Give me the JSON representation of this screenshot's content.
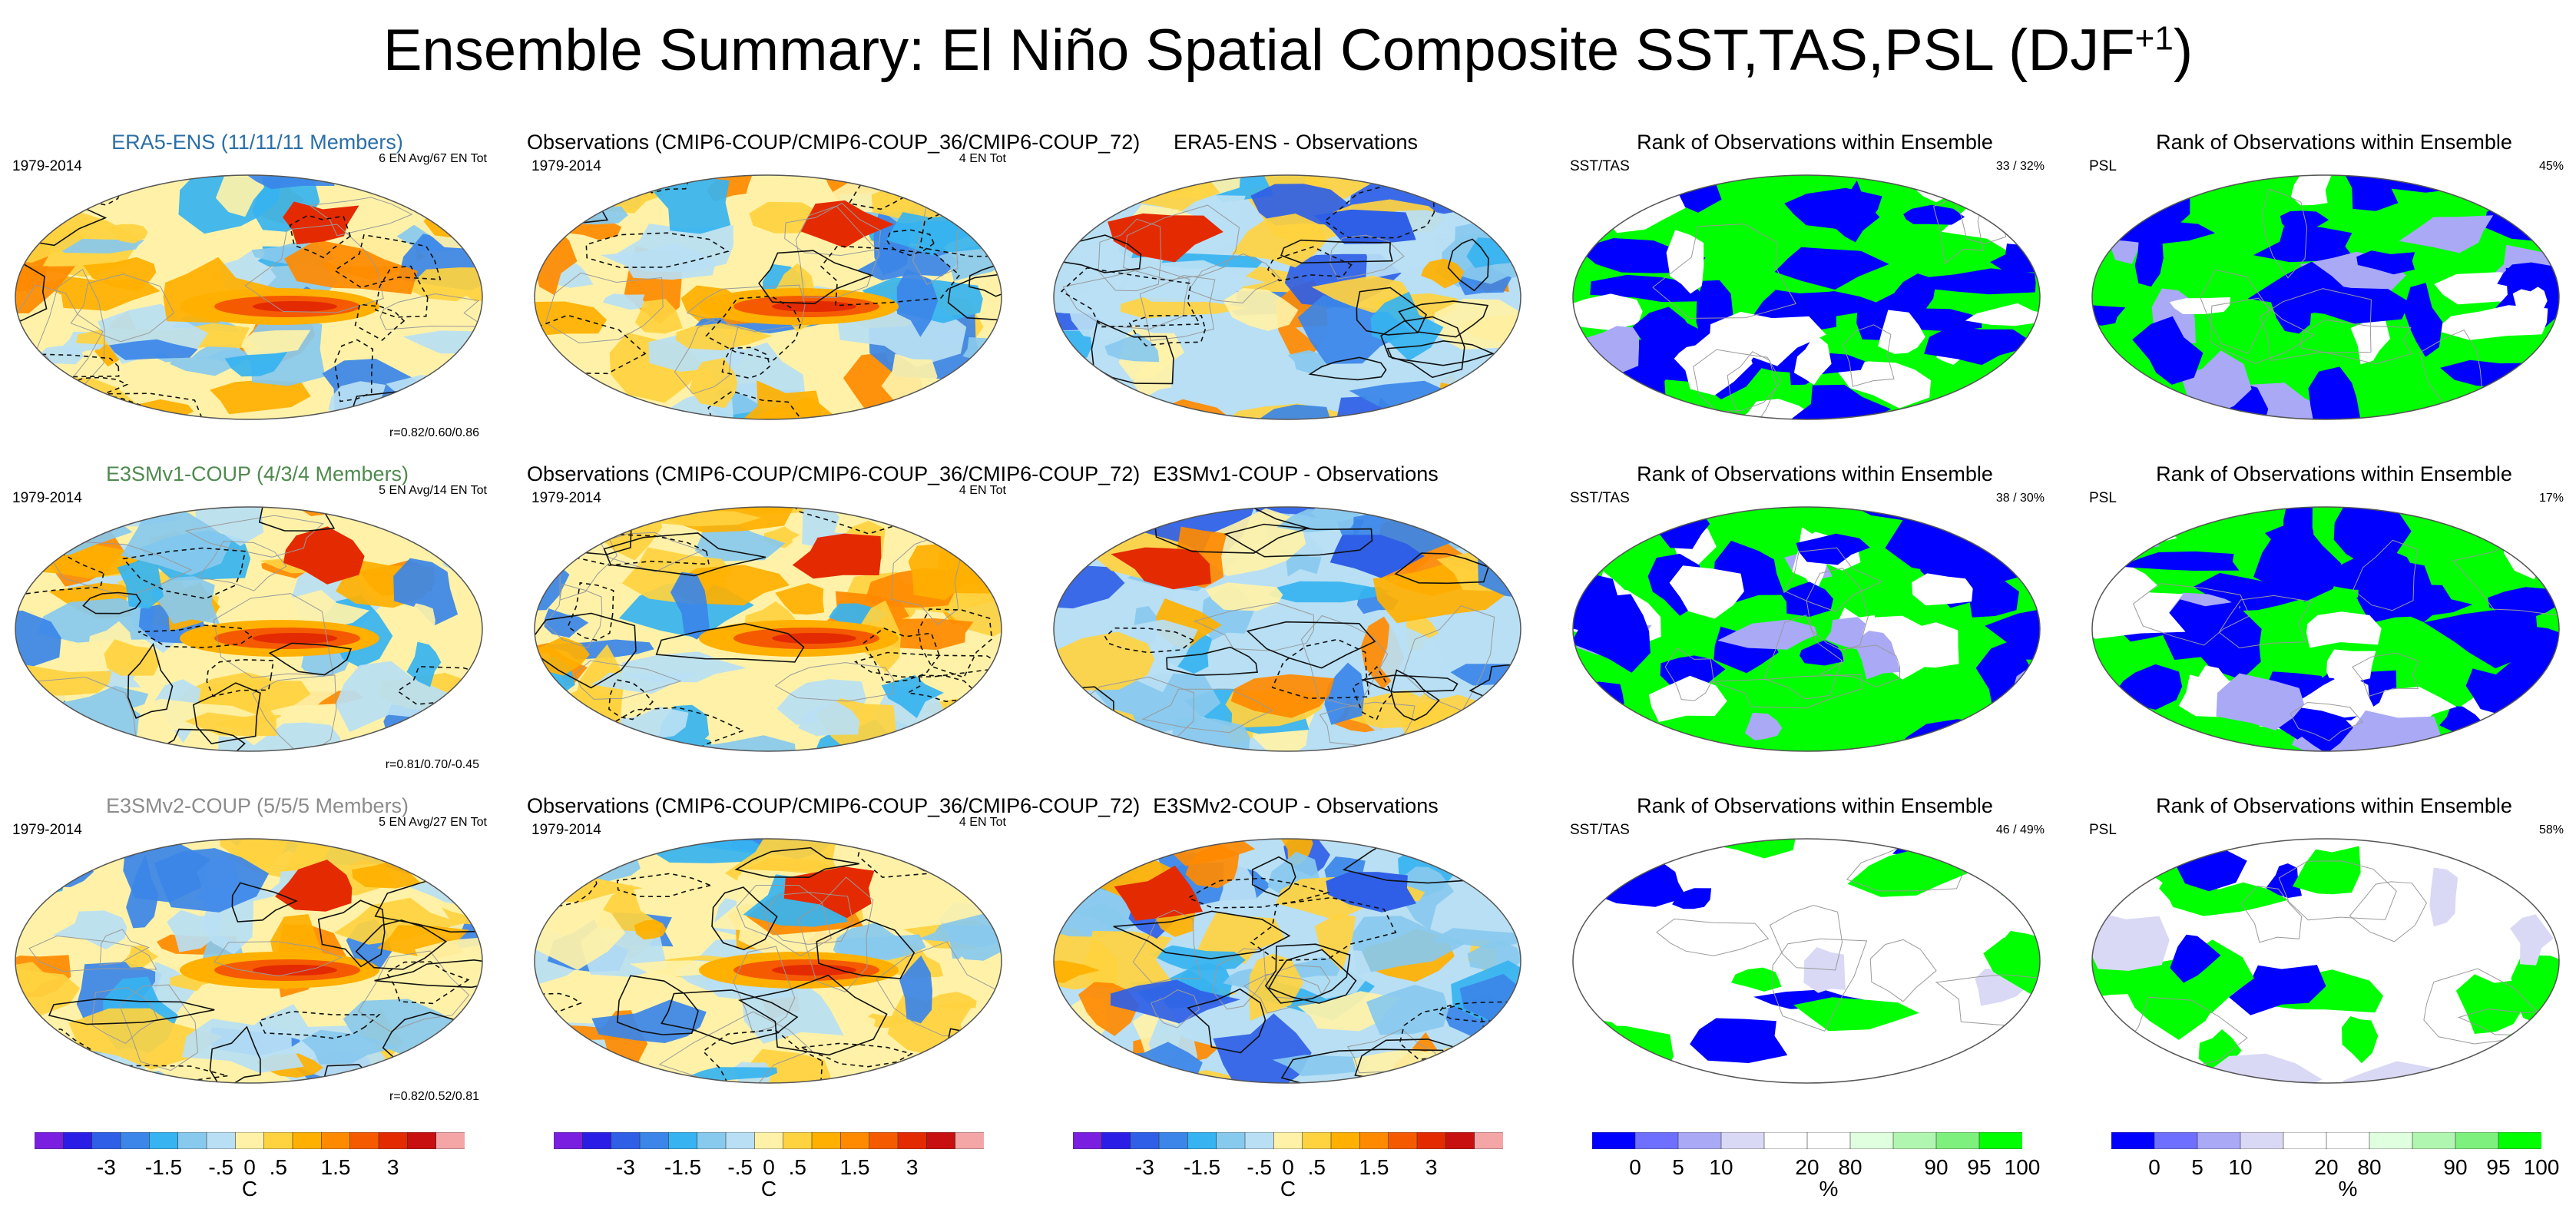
{
  "figure": {
    "title": "Ensemble Summary: El Niño Spatial Composite SST,TAS,PSL (DJF",
    "title_sup": "+1",
    "title_close": ")"
  },
  "colors": {
    "anom": [
      "#7a1fe0",
      "#2a1ee6",
      "#2f5fe6",
      "#3b86e8",
      "#36b3f0",
      "#88c9ee",
      "#b8dff4",
      "#fff2a8",
      "#ffd23f",
      "#ffb000",
      "#ff8a00",
      "#f55a00",
      "#e42a00",
      "#c81010",
      "#f4a6a6"
    ],
    "rank": [
      "#0000ff",
      "#6f6fff",
      "#a9a9f6",
      "#d9d9f6",
      "#ffffff",
      "#ffffff",
      "#dfffdf",
      "#b0f5b0",
      "#7ef07e",
      "#00ff00"
    ]
  },
  "rows": [
    {
      "ens": {
        "title": "ERA5-ENS (11/11/11 Members)",
        "title_color": "#2a6fa8",
        "period": "1979-2014",
        "count": "6 EN Avg/67 EN Tot",
        "corr": "r=0.82/0.60/0.86"
      },
      "obs": {
        "title": "Observations (CMIP6-COUP/CMIP6-COUP_36/CMIP6-COUP_72)",
        "period": "1979-2014",
        "count": "4 EN Tot"
      },
      "diff": {
        "title": "ERA5-ENS - Observations"
      },
      "rank_sst": {
        "title": "Rank of Observations within Ensemble",
        "label": "SST/TAS",
        "pct": "33 /  32%"
      },
      "rank_psl": {
        "title": "Rank of Observations within Ensemble",
        "label": "PSL",
        "pct": "45%"
      }
    },
    {
      "ens": {
        "title": "E3SMv1-COUP (4/3/4 Members)",
        "title_color": "#4f8a4f",
        "period": "1979-2014",
        "count": "5 EN Avg/14 EN Tot",
        "corr": "r=0.81/0.70/-0.45"
      },
      "obs": {
        "title": "Observations (CMIP6-COUP/CMIP6-COUP_36/CMIP6-COUP_72)",
        "period": "1979-2014",
        "count": "4 EN Tot"
      },
      "diff": {
        "title": "E3SMv1-COUP - Observations"
      },
      "rank_sst": {
        "title": "Rank of Observations within Ensemble",
        "label": "SST/TAS",
        "pct": "38 /  30%"
      },
      "rank_psl": {
        "title": "Rank of Observations within Ensemble",
        "label": "PSL",
        "pct": "17%"
      }
    },
    {
      "ens": {
        "title": "E3SMv2-COUP (5/5/5 Members)",
        "title_color": "#8c8c8c",
        "period": "1979-2014",
        "count": "5 EN Avg/27 EN Tot",
        "corr": "r=0.82/0.52/0.81"
      },
      "obs": {
        "title": "Observations (CMIP6-COUP/CMIP6-COUP_36/CMIP6-COUP_72)",
        "period": "1979-2014",
        "count": "4 EN Tot"
      },
      "diff": {
        "title": "E3SMv2-COUP - Observations"
      },
      "rank_sst": {
        "title": "Rank of Observations within Ensemble",
        "label": "SST/TAS",
        "pct": "46 /  49%"
      },
      "rank_psl": {
        "title": "Rank of Observations within Ensemble",
        "label": "PSL",
        "pct": "58%"
      }
    }
  ],
  "colorbars": {
    "anom": {
      "labels": [
        "-3",
        "-1.5",
        "-.5",
        "0",
        ".5",
        "1.5",
        "3"
      ],
      "unit": "C"
    },
    "rank": {
      "labels": [
        "0",
        "5",
        "10",
        "20",
        "80",
        "90",
        "95",
        "100"
      ],
      "unit": "%"
    }
  }
}
